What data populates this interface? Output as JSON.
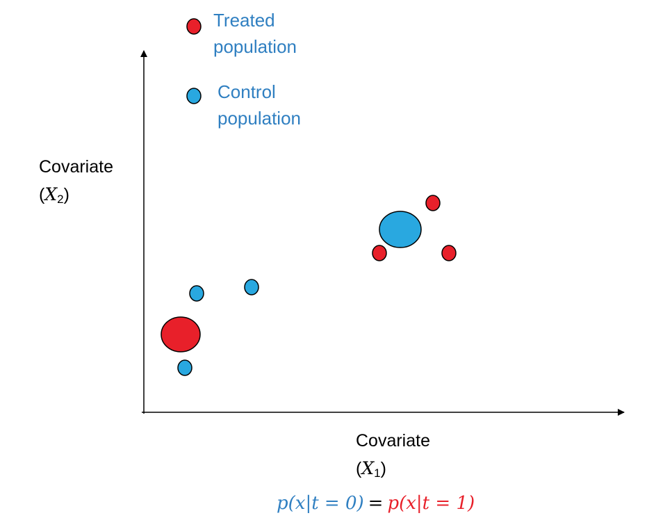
{
  "legend": {
    "treated_line1": "Treated",
    "treated_line2": "population",
    "control_line1": "Control",
    "control_line2": "population"
  },
  "axes": {
    "y_label": "Covariate",
    "y_var": "X",
    "y_sub": "2",
    "x_label": "Covariate",
    "x_var": "X",
    "x_sub": "1"
  },
  "equation": {
    "left": "p(x|t = 0)",
    "equals": "=",
    "right": "p(x|t = 1)"
  },
  "colors": {
    "treated": "#e8202a",
    "control": "#29a8e0",
    "label_blue": "#2f7fc1",
    "outline": "#000000"
  },
  "icons": {
    "treated": "red-circle",
    "control": "blue-circle"
  }
}
